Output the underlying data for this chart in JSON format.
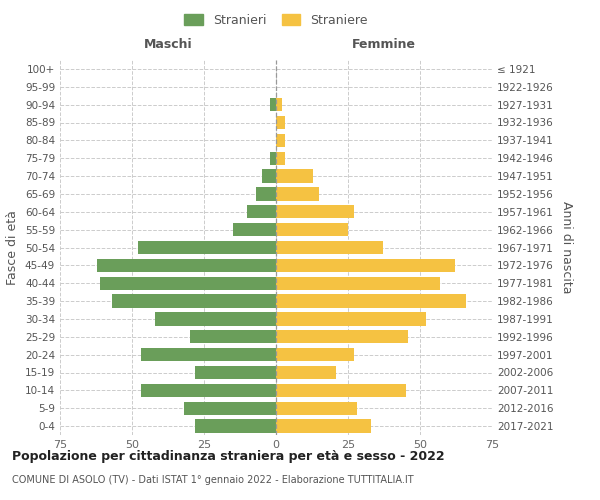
{
  "age_groups": [
    "100+",
    "95-99",
    "90-94",
    "85-89",
    "80-84",
    "75-79",
    "70-74",
    "65-69",
    "60-64",
    "55-59",
    "50-54",
    "45-49",
    "40-44",
    "35-39",
    "30-34",
    "25-29",
    "20-24",
    "15-19",
    "10-14",
    "5-9",
    "0-4"
  ],
  "birth_years": [
    "≤ 1921",
    "1922-1926",
    "1927-1931",
    "1932-1936",
    "1937-1941",
    "1942-1946",
    "1947-1951",
    "1952-1956",
    "1957-1961",
    "1962-1966",
    "1967-1971",
    "1972-1976",
    "1977-1981",
    "1982-1986",
    "1987-1991",
    "1992-1996",
    "1997-2001",
    "2002-2006",
    "2007-2011",
    "2012-2016",
    "2017-2021"
  ],
  "maschi": [
    0,
    0,
    2,
    0,
    0,
    2,
    5,
    7,
    10,
    15,
    48,
    62,
    61,
    57,
    42,
    30,
    47,
    28,
    47,
    32,
    28
  ],
  "femmine": [
    0,
    0,
    2,
    3,
    3,
    3,
    13,
    15,
    27,
    25,
    37,
    62,
    57,
    66,
    52,
    46,
    27,
    21,
    45,
    28,
    33
  ],
  "male_color": "#6a9e5a",
  "female_color": "#f5c242",
  "xlim": 75,
  "title": "Popolazione per cittadinanza straniera per età e sesso - 2022",
  "subtitle": "COMUNE DI ASOLO (TV) - Dati ISTAT 1° gennaio 2022 - Elaborazione TUTTITALIA.IT",
  "ylabel_left": "Fasce di età",
  "ylabel_right": "Anni di nascita",
  "xlabel_left": "Maschi",
  "xlabel_right": "Femmine",
  "legend_stranieri": "Stranieri",
  "legend_straniere": "Straniere",
  "background_color": "#ffffff",
  "grid_color": "#cccccc",
  "title_fontsize": 9,
  "subtitle_fontsize": 7,
  "bar_fontsize": 7.5,
  "axis_fontsize": 8
}
